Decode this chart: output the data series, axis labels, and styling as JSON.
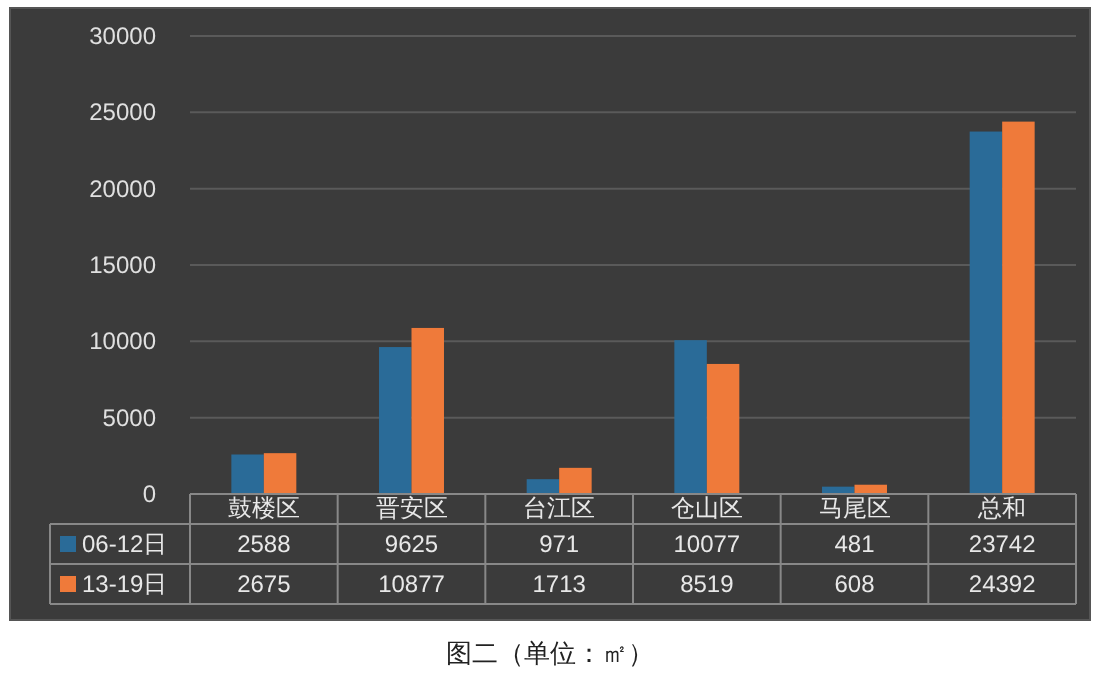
{
  "chart_data": {
    "type": "bar",
    "categories": [
      "鼓楼区",
      "晋安区",
      "台江区",
      "仓山区",
      "马尾区",
      "总和"
    ],
    "series": [
      {
        "name": "06-12日",
        "color": "#2a6b98",
        "values": [
          2588,
          9625,
          971,
          10077,
          481,
          23742
        ]
      },
      {
        "name": "13-19日",
        "color": "#ef7a3a",
        "values": [
          2675,
          10877,
          1713,
          8519,
          608,
          24392
        ]
      }
    ],
    "ylim": [
      0,
      30000
    ],
    "yticks": [
      0,
      5000,
      10000,
      15000,
      20000,
      25000,
      30000
    ],
    "grid": "y",
    "data_labels": true,
    "legend": "bottom",
    "annotations": [
      "图二（单位：㎡）"
    ]
  }
}
